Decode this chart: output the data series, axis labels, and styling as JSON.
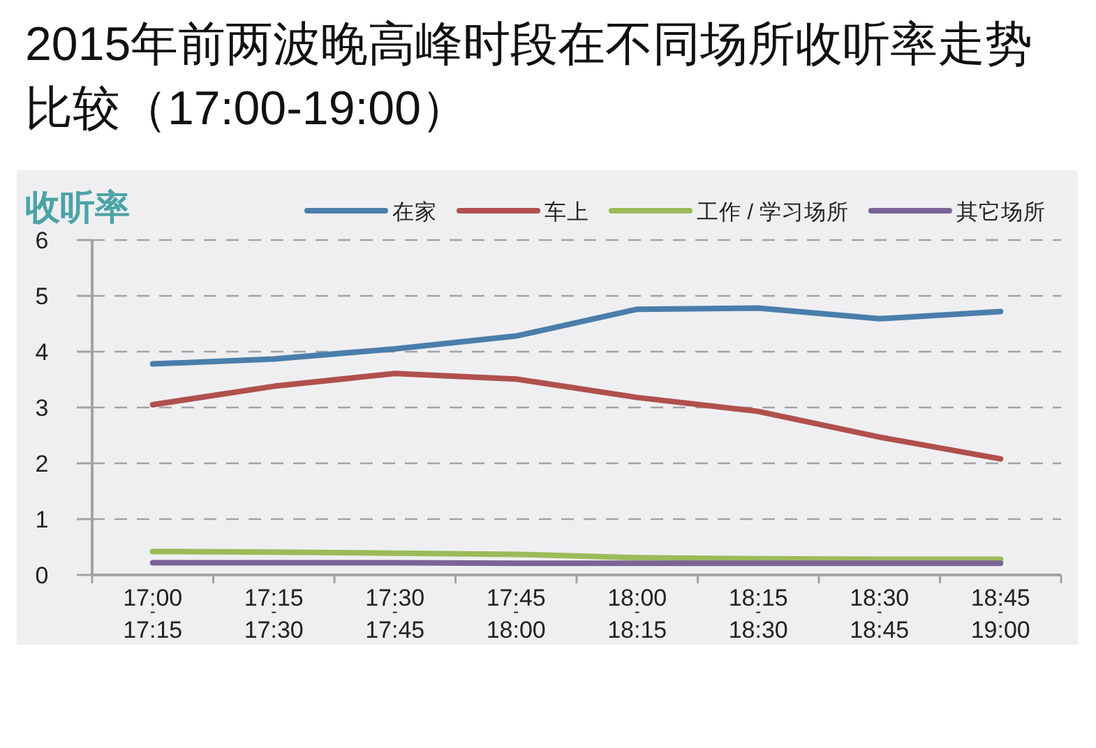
{
  "chart_data": {
    "type": "line",
    "title": "2015年前两波晚高峰时段在不同场所收听率走势比较（17:00-19:00）",
    "ylabel": "收听率",
    "categories": [
      "17:00$_{-}$17:15",
      "17:15$_{-}$17:30",
      "17:30$_{-}$17:45",
      "17:45$_{-}$18:00",
      "18:00$_{-}$18:15",
      "18:15$_{-}$18:30",
      "18:30$_{-}$18:45",
      "18:45$_{-}$19:00"
    ],
    "series": [
      {
        "name": "在家",
        "color": "#4a7eab",
        "values": [
          3.78,
          3.87,
          4.05,
          4.28,
          4.76,
          4.78,
          4.59,
          4.72
        ]
      },
      {
        "name": "车上",
        "color": "#b0504d",
        "values": [
          3.05,
          3.38,
          3.61,
          3.51,
          3.18,
          2.93,
          2.47,
          2.08
        ]
      },
      {
        "name": "工作 / 学习场所",
        "color": "#9bbb59",
        "values": [
          0.42,
          0.41,
          0.39,
          0.37,
          0.31,
          0.29,
          0.28,
          0.28
        ]
      },
      {
        "name": "其它场所",
        "color": "#7a6496",
        "values": [
          0.22,
          0.22,
          0.22,
          0.21,
          0.21,
          0.21,
          0.21,
          0.21
        ]
      }
    ],
    "ylim": [
      0,
      6
    ],
    "yticks": [
      0,
      1,
      2,
      3,
      4,
      5,
      6
    ],
    "grid": "y",
    "legend": "top",
    "line_style": "solid"
  }
}
